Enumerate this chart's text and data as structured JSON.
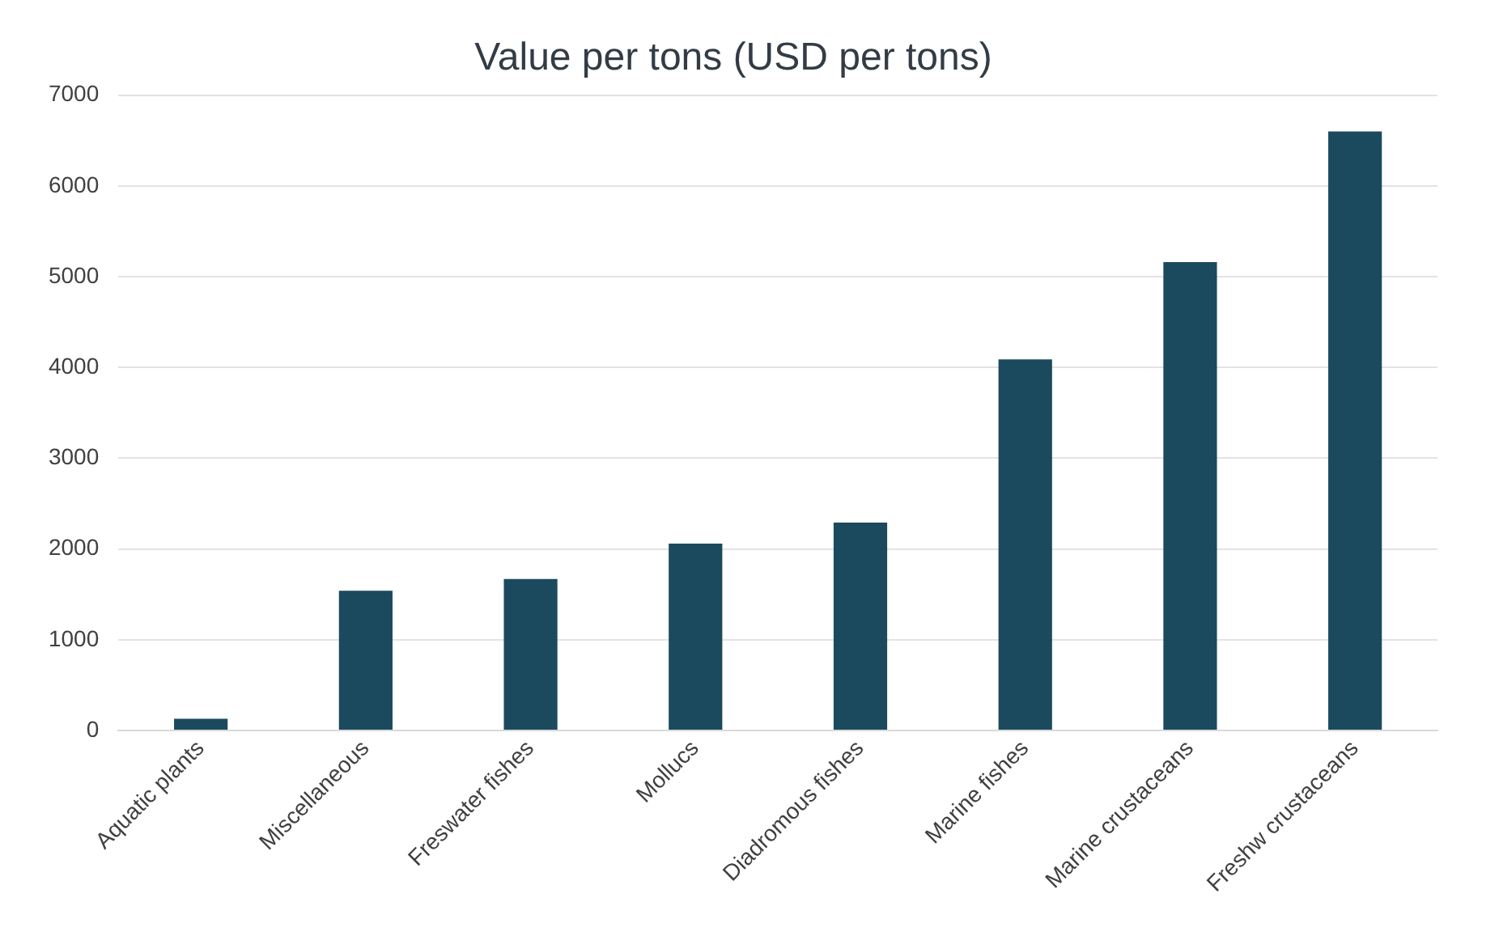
{
  "chart_data": {
    "type": "bar",
    "title": "Value per tons (USD per tons)",
    "categories": [
      "Aquatic plants",
      "Miscellaneous",
      "Freswater fishes",
      "Mollucs",
      "Diadromous fishes",
      "Marine fishes",
      "Marine crustaceans",
      "Freshw crustaceans"
    ],
    "values": [
      130,
      1540,
      1670,
      2060,
      2290,
      4090,
      5160,
      6600
    ],
    "color": "#1b4a5e",
    "ylim": [
      0,
      7000
    ],
    "yticks": [
      0,
      1000,
      2000,
      3000,
      4000,
      5000,
      6000,
      7000
    ],
    "grid": "y",
    "legend": false
  }
}
